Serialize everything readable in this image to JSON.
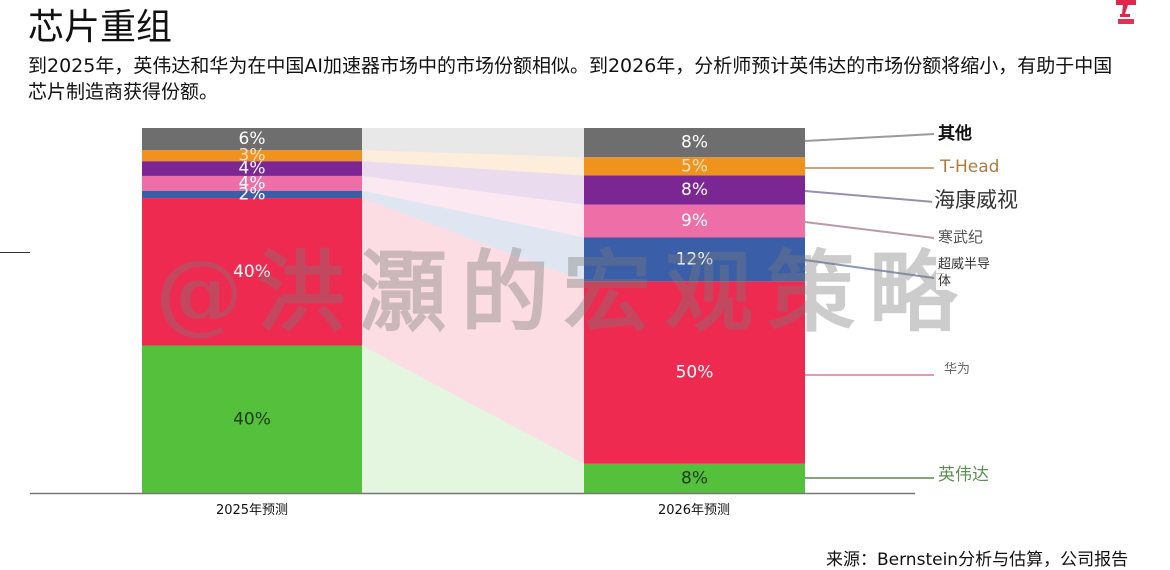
{
  "header": {
    "title": "芯片重组",
    "subtitle": "到2025年，英伟达和华为在中国AI加速器市场中的市场份额相似。到2026年，分析师预计英伟达的市场份额将缩小，有助于中国芯片制造商获得份额。",
    "logo_icon": "red-t-logo-icon"
  },
  "watermark": "@洪灝的宏观策略",
  "source": "来源：Bernstein分析与估算，公司报告",
  "colors": {
    "其他": "#6e6e6e",
    "T-Head": "#f0921e",
    "海康威视": "#7b2693",
    "寒武纪": "#ee6fa8",
    "超威半导体": "#3a5ea8",
    "华为": "#ef2a50",
    "英伟达": "#55c03c"
  },
  "chart_data": {
    "type": "bar",
    "stacked": true,
    "normalized_100": true,
    "title": "芯片重组",
    "xlabel": "",
    "ylabel": "",
    "ylim": [
      0,
      100
    ],
    "grid": false,
    "legend_position": "right (leader lines)",
    "categories": [
      "2025年预测",
      "2026年预测"
    ],
    "series": [
      {
        "name": "英伟达",
        "values": [
          40,
          8
        ],
        "labels": [
          "40%",
          "8%"
        ],
        "color": "#55c03c"
      },
      {
        "name": "华为",
        "values": [
          40,
          50
        ],
        "labels": [
          "40%",
          "50%"
        ],
        "color": "#ef2a50"
      },
      {
        "name": "超威半导体",
        "values": [
          2,
          12
        ],
        "labels": [
          "2%",
          "12%"
        ],
        "color": "#3a5ea8"
      },
      {
        "name": "寒武纪",
        "values": [
          4,
          9
        ],
        "labels": [
          "4%",
          "9%"
        ],
        "color": "#ee6fa8"
      },
      {
        "name": "海康威视",
        "values": [
          4,
          8
        ],
        "labels": [
          "4%",
          "8%"
        ],
        "color": "#7b2693"
      },
      {
        "name": "T-Head",
        "values": [
          3,
          5
        ],
        "labels": [
          "3%",
          "5%"
        ],
        "color": "#f0921e"
      },
      {
        "name": "其他",
        "values": [
          6,
          8
        ],
        "labels": [
          "6%",
          "8%"
        ],
        "color": "#6e6e6e"
      }
    ],
    "legend": [
      "其他",
      "T-Head",
      "海康威视",
      "寒武纪",
      "超威半导体",
      "华为",
      "英伟达"
    ]
  },
  "legend_labels": {
    "其他": "其他",
    "T-Head": "T-Head",
    "海康威视": "海康威视",
    "寒武纪": "寒武纪",
    "超威半导体_line1": "超威半导",
    "超威半导体_line2": "体",
    "华为": "华为",
    "英伟达": "英伟达"
  },
  "xticks": [
    "2025年预测",
    "2026年预测"
  ]
}
